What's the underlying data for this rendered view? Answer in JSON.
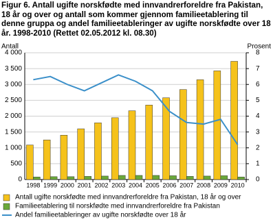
{
  "chart_data": {
    "type": "bar-line",
    "title": "Figur 6. Antall ugifte norskfødte med innvandrerforeldre fra Pakistan, 18 år og over og antall som kommer gjennom familieetablering til denne gruppa og andel familieetableringer av ugifte norskfødte over 18 år. 1998-2010 (Rettet 02.05.2012 kl. 08.30)",
    "ylabel": "Antall",
    "y2label": "Prosent",
    "categories": [
      "1998",
      "1999",
      "2000",
      "2001",
      "2002",
      "2003",
      "2004",
      "2005",
      "2006",
      "2007",
      "2008",
      "2009",
      "2010"
    ],
    "series": [
      {
        "name": "Antall ugifte norskfødte med innvandrerforeldre fra Pakistan, 18 år og over",
        "type": "bar",
        "color": "#f5c21b",
        "values": [
          1090,
          1250,
          1400,
          1600,
          1790,
          1950,
          2170,
          2350,
          2580,
          2840,
          3150,
          3430,
          3730
        ]
      },
      {
        "name": "Familieetablering til norskfødte med innvandrerforeldre fra Pakistan",
        "type": "bar",
        "color": "#6aa83a",
        "values": [
          80,
          90,
          90,
          100,
          110,
          130,
          130,
          130,
          120,
          100,
          110,
          120,
          80
        ]
      },
      {
        "name": "Andel familieetableringer av ugifte norskfødte over 18 år",
        "type": "line",
        "axis": "y2",
        "color": "#3a8fc9",
        "values": [
          6.3,
          6.5,
          6.0,
          5.6,
          6.1,
          6.6,
          6.2,
          5.6,
          4.3,
          3.6,
          3.5,
          3.8,
          2.2
        ]
      }
    ],
    "ylim": [
      0,
      4000
    ],
    "yticks": [
      0,
      500,
      {
        "value": 1000,
        "label": "1 000"
      },
      {
        "value": 1500,
        "label": "1 500"
      },
      {
        "value": 2000,
        "label": "2 000"
      },
      {
        "value": 2500,
        "label": "2 500"
      },
      {
        "value": 3000,
        "label": "3 000"
      },
      {
        "value": 3500,
        "label": "3 500"
      },
      {
        "value": 4000,
        "label": "4 000"
      }
    ],
    "y2lim": [
      0,
      8
    ],
    "y2ticks": [
      0,
      1,
      2,
      3,
      4,
      5,
      6,
      7,
      8
    ],
    "grid": true
  }
}
